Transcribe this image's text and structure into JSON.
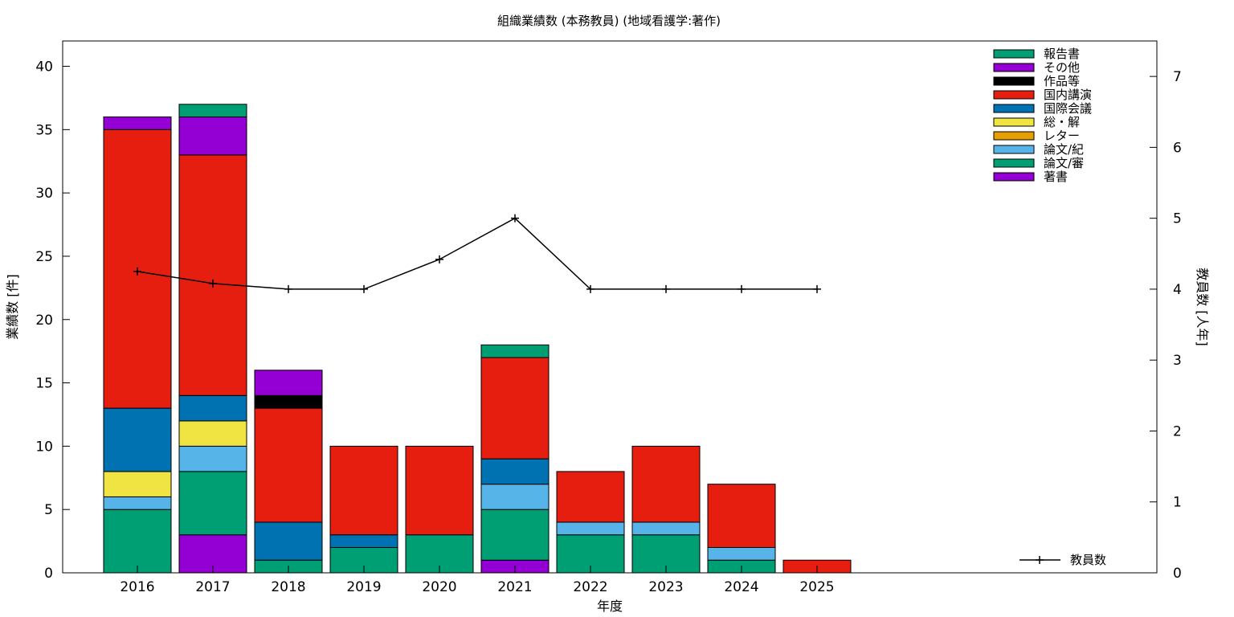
{
  "chart_data": {
    "type": "bar",
    "stacked": true,
    "title": "組織業績数 (本務教員) (地域看護学:著作)",
    "xlabel": "年度",
    "ylabel": "業績数 [件]",
    "y2label": "教員数 [人年]",
    "ylim": [
      0,
      42
    ],
    "y2lim": [
      0,
      7.5
    ],
    "yticks": [
      "0",
      "5",
      "10",
      "15",
      "20",
      "25",
      "30",
      "35",
      "40"
    ],
    "y2ticks": [
      "0",
      "1",
      "2",
      "3",
      "4",
      "5",
      "6",
      "7"
    ],
    "categories": [
      "2016",
      "2017",
      "2018",
      "2019",
      "2020",
      "2021",
      "2022",
      "2023",
      "2024",
      "2025"
    ],
    "grid": false,
    "legend_position": "top-right",
    "series": [
      {
        "name": "著書",
        "color": "#9400d3",
        "values": [
          0,
          3,
          0,
          0,
          0,
          1,
          0,
          0,
          0,
          0
        ]
      },
      {
        "name": "論文/審",
        "color": "#009e73",
        "values": [
          5,
          5,
          1,
          2,
          3,
          4,
          3,
          3,
          1,
          0
        ]
      },
      {
        "name": "論文/紀",
        "color": "#56b4e9",
        "values": [
          1,
          2,
          0,
          0,
          0,
          2,
          1,
          1,
          1,
          0
        ]
      },
      {
        "name": "レター",
        "color": "#e69f00",
        "values": [
          0,
          0,
          0,
          0,
          0,
          0,
          0,
          0,
          0,
          0
        ]
      },
      {
        "name": "総・解",
        "color": "#f0e442",
        "values": [
          2,
          2,
          0,
          0,
          0,
          0,
          0,
          0,
          0,
          0
        ]
      },
      {
        "name": "国際会議",
        "color": "#0072b2",
        "values": [
          5,
          2,
          3,
          1,
          0,
          2,
          0,
          0,
          0,
          0
        ]
      },
      {
        "name": "国内講演",
        "color": "#e51e10",
        "values": [
          22,
          19,
          9,
          7,
          7,
          8,
          4,
          6,
          5,
          1
        ]
      },
      {
        "name": "作品等",
        "color": "#000000",
        "values": [
          0,
          0,
          1,
          0,
          0,
          0,
          0,
          0,
          0,
          0
        ]
      },
      {
        "name": "その他",
        "color": "#9400d3",
        "values": [
          1,
          3,
          2,
          0,
          0,
          0,
          0,
          0,
          0,
          0
        ]
      },
      {
        "name": "報告書",
        "color": "#009e73",
        "values": [
          0,
          1,
          0,
          0,
          0,
          1,
          0,
          0,
          0,
          0
        ]
      }
    ],
    "line_series": {
      "name": "教員数",
      "axis": "right",
      "color": "#000000",
      "values": [
        4.25,
        4.08,
        4.0,
        4.0,
        4.42,
        5.0,
        4.0,
        4.0,
        4.0,
        4.0
      ]
    }
  }
}
